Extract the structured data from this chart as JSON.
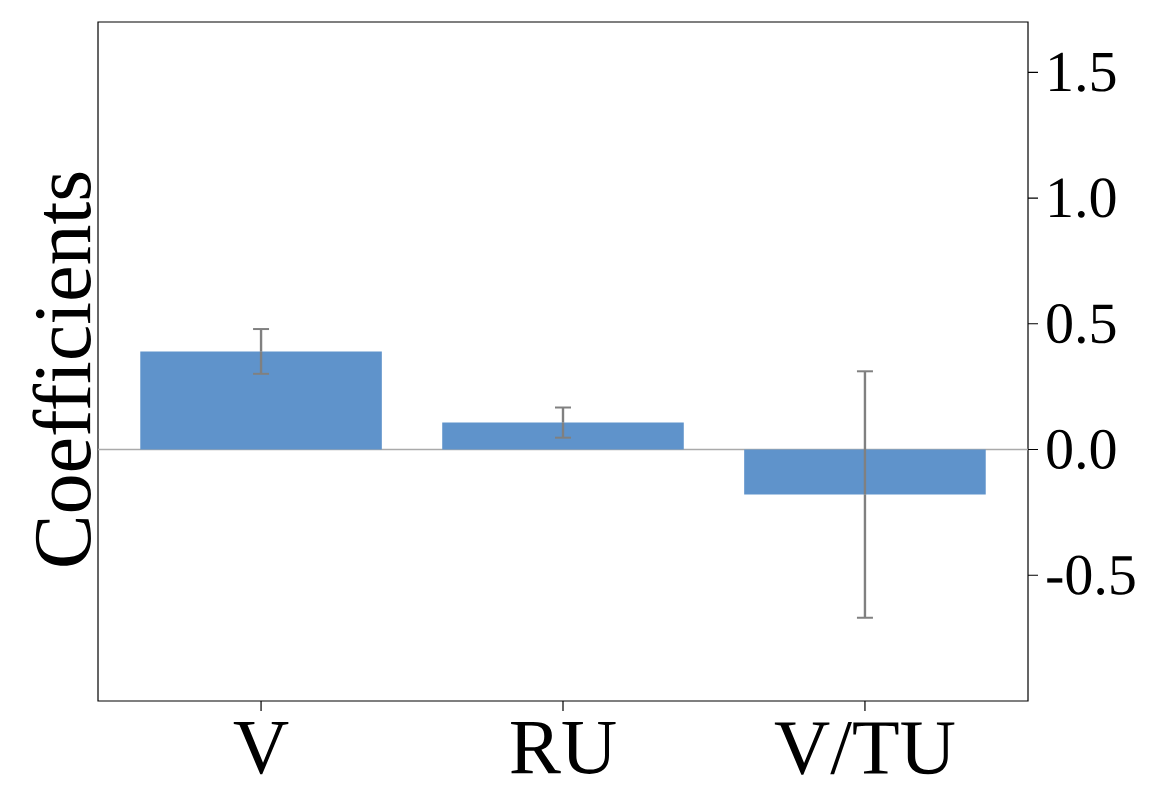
{
  "chart_data": {
    "type": "bar",
    "ylabel": "Coefficients",
    "categories": [
      "V",
      "RU",
      "V/TU"
    ],
    "values": [
      0.39,
      0.107,
      -0.179
    ],
    "errors": [
      0.089,
      0.06,
      0.49
    ],
    "color": "#5f93cb",
    "ylim": [
      -1.0,
      1.7
    ],
    "yticks": [
      {
        "value": -0.5,
        "label": "-0.5"
      },
      {
        "value": 0.0,
        "label": "0.0"
      },
      {
        "value": 0.5,
        "label": "0.5"
      },
      {
        "value": 1.0,
        "label": "1.0"
      },
      {
        "value": 1.5,
        "label": "1.5"
      }
    ],
    "ref_lines": [
      {
        "axis": "y",
        "value": 0,
        "color": "#aaaaaa"
      }
    ],
    "grid": false
  }
}
